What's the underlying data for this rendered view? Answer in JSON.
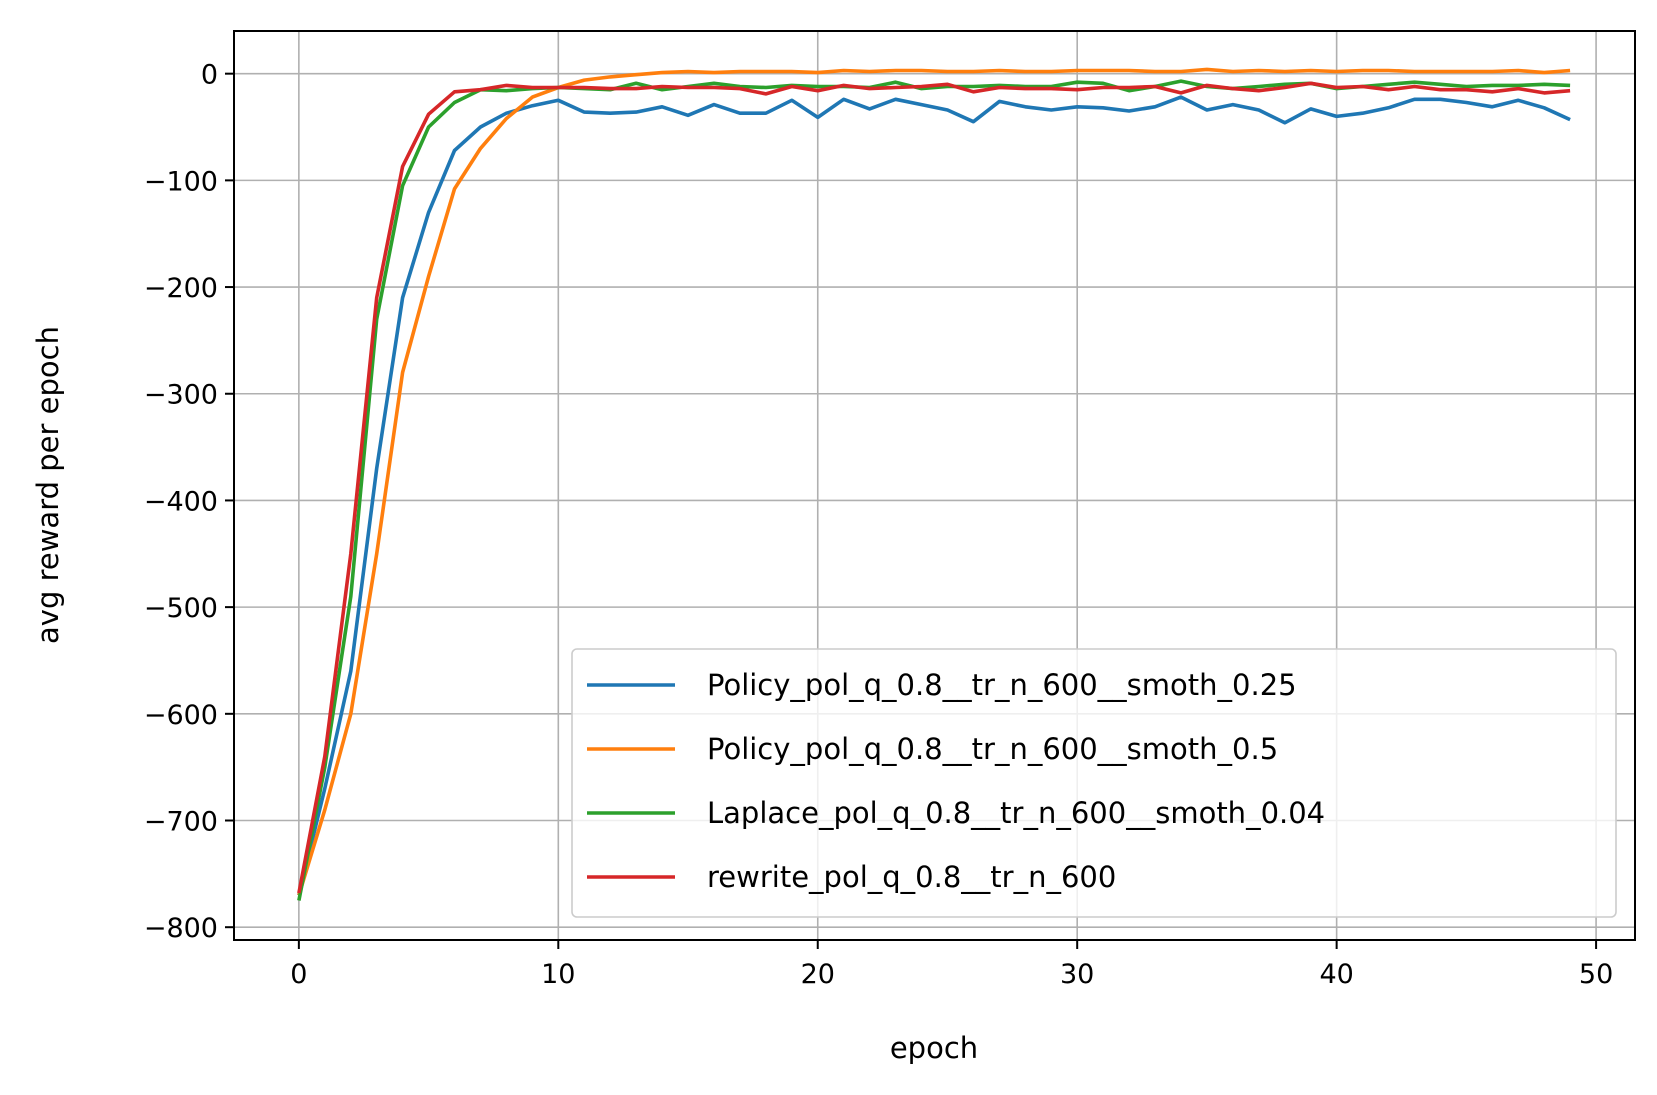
{
  "chart_data": {
    "type": "line",
    "title": "",
    "xlabel": "epoch",
    "ylabel": "avg reward per epoch",
    "xlim": [
      -2.5,
      51.5
    ],
    "ylim": [
      -812,
      40
    ],
    "xticks": [
      0,
      10,
      20,
      30,
      40,
      50
    ],
    "yticks": [
      0,
      -100,
      -200,
      -300,
      -400,
      -500,
      -600,
      -700,
      -800
    ],
    "xtick_labels": [
      "0",
      "10",
      "20",
      "30",
      "40",
      "50"
    ],
    "ytick_labels": [
      "0",
      "−100",
      "−200",
      "−300",
      "−400",
      "−500",
      "−600",
      "−700",
      "−800"
    ],
    "grid": true,
    "legend_position": "lower-right",
    "x": [
      0,
      1,
      2,
      3,
      4,
      5,
      6,
      7,
      8,
      9,
      10,
      11,
      12,
      13,
      14,
      15,
      16,
      17,
      18,
      19,
      20,
      21,
      22,
      23,
      24,
      25,
      26,
      27,
      28,
      29,
      30,
      31,
      32,
      33,
      34,
      35,
      36,
      37,
      38,
      39,
      40,
      41,
      42,
      43,
      44,
      45,
      46,
      47,
      48,
      49
    ],
    "series": [
      {
        "name": "Policy_pol_q_0.8__tr_n_600__smoth_0.25",
        "color": "#1f77b4",
        "values": [
          -770,
          -670,
          -560,
          -370,
          -210,
          -130,
          -72,
          -50,
          -37,
          -30,
          -25,
          -36,
          -37,
          -36,
          -31,
          -39,
          -29,
          -37,
          -37,
          -25,
          -41,
          -24,
          -33,
          -24,
          -29,
          -34,
          -45,
          -26,
          -31,
          -34,
          -31,
          -32,
          -35,
          -31,
          -22,
          -34,
          -29,
          -34,
          -46,
          -33,
          -40,
          -37,
          -32,
          -24,
          -24,
          -27,
          -31,
          -25,
          -32,
          -43
        ]
      },
      {
        "name": "Policy_pol_q_0.8__tr_n_600__smoth_0.5",
        "color": "#ff7f0e",
        "values": [
          -770,
          -690,
          -600,
          -450,
          -280,
          -190,
          -108,
          -70,
          -42,
          -22,
          -13,
          -6,
          -3,
          -1,
          1,
          2,
          1,
          2,
          2,
          2,
          1,
          3,
          2,
          3,
          3,
          2,
          2,
          3,
          2,
          2,
          3,
          3,
          3,
          2,
          2,
          4,
          2,
          3,
          2,
          3,
          2,
          3,
          3,
          2,
          2,
          2,
          2,
          3,
          1,
          3
        ]
      },
      {
        "name": "Laplace_pol_q_0.8__tr_n_600__smoth_0.04",
        "color": "#2ca02c",
        "values": [
          -775,
          -650,
          -490,
          -230,
          -105,
          -50,
          -27,
          -15,
          -16,
          -14,
          -13,
          -14,
          -15,
          -9,
          -15,
          -12,
          -9,
          -12,
          -13,
          -11,
          -12,
          -12,
          -13,
          -8,
          -14,
          -12,
          -12,
          -11,
          -12,
          -12,
          -8,
          -9,
          -16,
          -12,
          -7,
          -12,
          -14,
          -12,
          -10,
          -9,
          -14,
          -12,
          -10,
          -8,
          -10,
          -12,
          -11,
          -11,
          -10,
          -11
        ]
      },
      {
        "name": "rewrite_pol_q_0.8__tr_n_600",
        "color": "#d62728",
        "values": [
          -768,
          -640,
          -450,
          -210,
          -87,
          -38,
          -17,
          -15,
          -11,
          -13,
          -13,
          -13,
          -14,
          -14,
          -12,
          -13,
          -13,
          -14,
          -19,
          -12,
          -16,
          -11,
          -14,
          -13,
          -12,
          -10,
          -17,
          -13,
          -14,
          -14,
          -15,
          -13,
          -13,
          -12,
          -18,
          -11,
          -14,
          -16,
          -13,
          -9,
          -13,
          -12,
          -15,
          -12,
          -15,
          -15,
          -17,
          -14,
          -18,
          -16
        ]
      }
    ]
  }
}
